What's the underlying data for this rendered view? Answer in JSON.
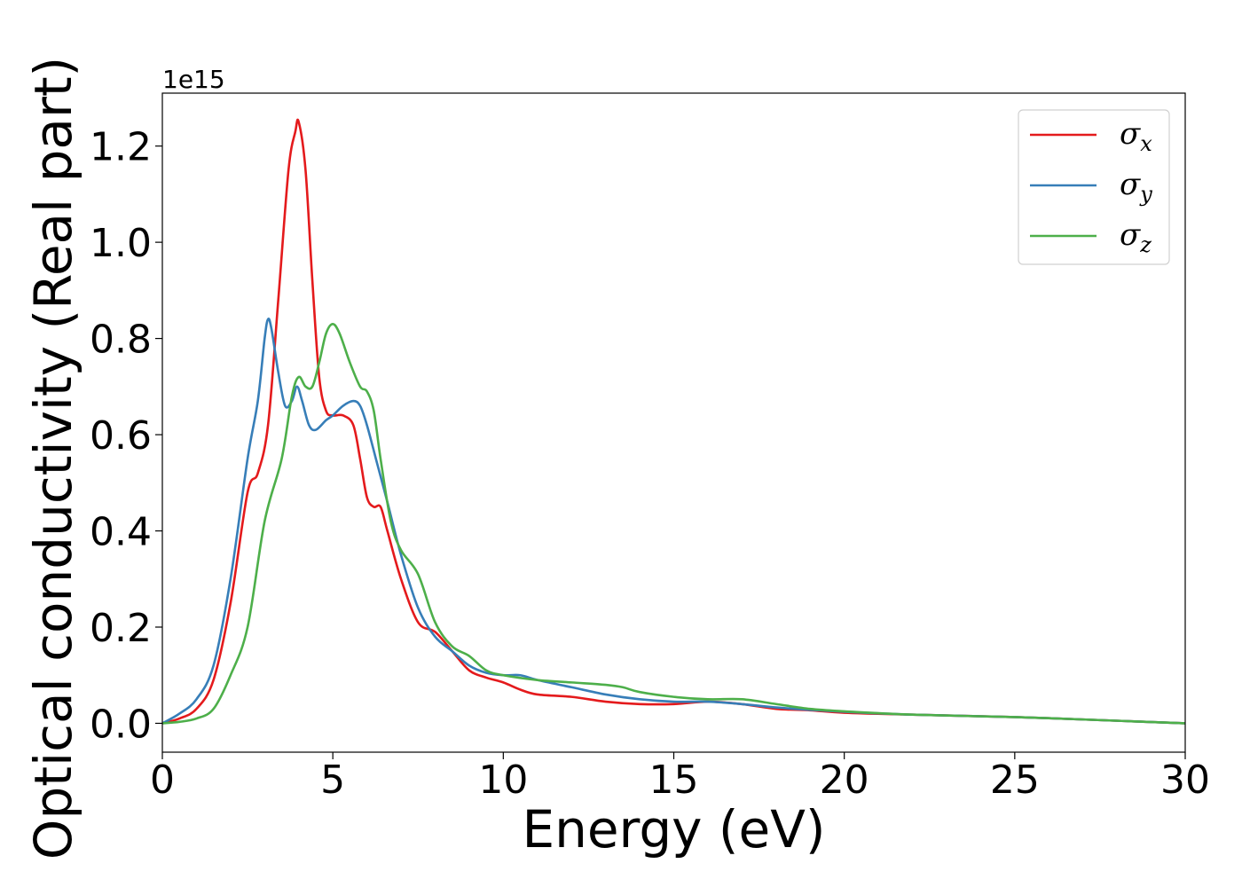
{
  "chart_data": {
    "type": "line",
    "title": "",
    "xlabel": "Energy (eV)",
    "ylabel": "Optical conductivity (Real part)",
    "y_offset_label": "1e15",
    "xlim": [
      0,
      30
    ],
    "ylim": [
      -0.06,
      1.31
    ],
    "x_ticks": [
      0,
      5,
      10,
      15,
      20,
      25,
      30
    ],
    "y_ticks": [
      0.0,
      0.2,
      0.4,
      0.6,
      0.8,
      1.0,
      1.2
    ],
    "x_tick_labels": [
      "0",
      "5",
      "10",
      "15",
      "20",
      "25",
      "30"
    ],
    "y_tick_labels": [
      "0.0",
      "0.2",
      "0.4",
      "0.6",
      "0.8",
      "1.0",
      "1.2"
    ],
    "grid": false,
    "legend_position": "top-right",
    "series": [
      {
        "name": "σx",
        "symbol": "σ",
        "subscript": "x",
        "color": "#e41a1c",
        "x": [
          0,
          0.5,
          1,
          1.5,
          2,
          2.5,
          2.8,
          3.1,
          3.4,
          3.7,
          3.9,
          4.0,
          4.2,
          4.4,
          4.6,
          4.8,
          5.0,
          5.3,
          5.6,
          5.8,
          6.0,
          6.2,
          6.4,
          6.6,
          7.0,
          7.5,
          8.0,
          8.5,
          9.0,
          9.5,
          10.0,
          10.5,
          11.0,
          12.0,
          13.0,
          14.0,
          15.0,
          16.0,
          17.0,
          18.0,
          19.0,
          20.0,
          22.0,
          25.0,
          27.0,
          30.0
        ],
        "values": [
          0.0,
          0.01,
          0.03,
          0.09,
          0.25,
          0.48,
          0.52,
          0.62,
          0.88,
          1.15,
          1.23,
          1.25,
          1.15,
          0.92,
          0.72,
          0.65,
          0.64,
          0.64,
          0.62,
          0.55,
          0.47,
          0.45,
          0.45,
          0.4,
          0.3,
          0.21,
          0.19,
          0.15,
          0.11,
          0.095,
          0.085,
          0.07,
          0.06,
          0.055,
          0.045,
          0.04,
          0.04,
          0.045,
          0.04,
          0.03,
          0.027,
          0.022,
          0.018,
          0.013,
          0.008,
          0.0
        ]
      },
      {
        "name": "σy",
        "symbol": "σ",
        "subscript": "y",
        "color": "#377eb8",
        "x": [
          0,
          0.5,
          1,
          1.5,
          2,
          2.5,
          2.8,
          3.0,
          3.1,
          3.2,
          3.4,
          3.6,
          3.8,
          3.95,
          4.1,
          4.3,
          4.5,
          4.8,
          5.0,
          5.3,
          5.6,
          5.8,
          6.0,
          6.3,
          6.6,
          7.0,
          7.5,
          8.0,
          8.5,
          9.0,
          9.5,
          10.0,
          10.5,
          11.0,
          12.0,
          13.0,
          14.0,
          15.0,
          16.0,
          17.0,
          18.0,
          19.0,
          20.0,
          22.0,
          25.0,
          27.0,
          30.0
        ],
        "values": [
          0.0,
          0.02,
          0.05,
          0.12,
          0.3,
          0.55,
          0.67,
          0.8,
          0.84,
          0.82,
          0.73,
          0.66,
          0.67,
          0.7,
          0.67,
          0.62,
          0.61,
          0.63,
          0.64,
          0.66,
          0.67,
          0.66,
          0.62,
          0.54,
          0.46,
          0.35,
          0.24,
          0.18,
          0.15,
          0.12,
          0.105,
          0.1,
          0.1,
          0.09,
          0.075,
          0.06,
          0.05,
          0.045,
          0.045,
          0.04,
          0.033,
          0.028,
          0.024,
          0.018,
          0.013,
          0.008,
          0.0
        ]
      },
      {
        "name": "σz",
        "symbol": "σ",
        "subscript": "z",
        "color": "#4daf4a",
        "x": [
          0,
          0.5,
          1,
          1.5,
          2,
          2.5,
          3.0,
          3.5,
          3.8,
          4.0,
          4.2,
          4.4,
          4.6,
          4.8,
          5.0,
          5.2,
          5.5,
          5.8,
          6.0,
          6.2,
          6.4,
          6.7,
          7.0,
          7.5,
          8.0,
          8.5,
          9.0,
          9.5,
          10.0,
          11.0,
          12.0,
          13.0,
          13.5,
          14.0,
          15.0,
          16.0,
          17.0,
          18.0,
          19.0,
          20.0,
          22.0,
          25.0,
          27.0,
          30.0
        ],
        "values": [
          0.0,
          0.003,
          0.01,
          0.03,
          0.1,
          0.2,
          0.42,
          0.55,
          0.68,
          0.72,
          0.7,
          0.7,
          0.75,
          0.81,
          0.83,
          0.81,
          0.75,
          0.7,
          0.69,
          0.65,
          0.55,
          0.42,
          0.36,
          0.31,
          0.21,
          0.16,
          0.14,
          0.11,
          0.1,
          0.09,
          0.085,
          0.08,
          0.075,
          0.065,
          0.055,
          0.05,
          0.05,
          0.04,
          0.03,
          0.025,
          0.018,
          0.013,
          0.008,
          0.0
        ]
      }
    ]
  }
}
